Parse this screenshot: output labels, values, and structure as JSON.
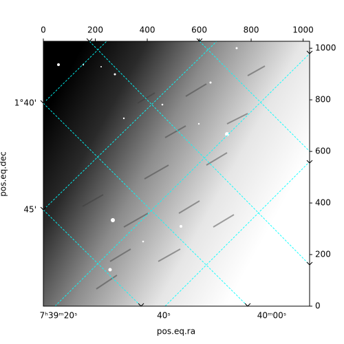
{
  "chart_data": {
    "type": "image",
    "xlim": [
      0,
      1025
    ],
    "xticks": [
      0,
      200,
      400,
      600,
      800,
      1000
    ],
    "ylim": [
      0,
      1027
    ],
    "yticks": [
      0,
      200,
      400,
      600,
      800,
      1000
    ],
    "ra_ticks": [
      "7ʰ39ᵐ20ˢ",
      "40ˢ",
      "40ᵐ00ˢ"
    ],
    "dec_ticks": [
      "1°40'",
      "45'"
    ],
    "xlabel": "pos.eq.ra",
    "ylabel": "pos.eq.dec",
    "grid_color": "#00ffff"
  }
}
